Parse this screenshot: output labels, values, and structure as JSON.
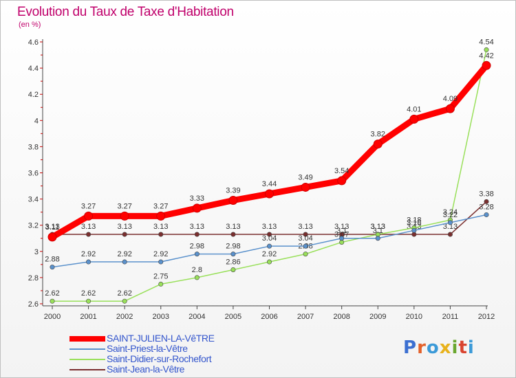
{
  "title": "Evolution du Taux de Taxe d'Habitation",
  "subtitle": "(en %)",
  "logo": {
    "letters": [
      "P",
      "r",
      "o",
      "x",
      "i",
      "t",
      "i"
    ],
    "colors": [
      "#3b6fd1",
      "#e3612a",
      "#3b9ad8",
      "#e8b21c",
      "#6aa72f",
      "#d9432f",
      "#3b9ad8"
    ]
  },
  "chart_data": {
    "type": "line",
    "x": [
      "2000",
      "2001",
      "2002",
      "2003",
      "2004",
      "2005",
      "2006",
      "2007",
      "2008",
      "2009",
      "2010",
      "2011",
      "2012"
    ],
    "y_ticks": [
      "2.6",
      "2.8",
      "3",
      "3.2",
      "3.4",
      "3.6",
      "3.8",
      "4",
      "4.2",
      "4.4",
      "4.6"
    ],
    "y_tick_values": [
      2.6,
      2.8,
      3.0,
      3.2,
      3.4,
      3.6,
      3.8,
      4.0,
      4.2,
      4.4,
      4.6
    ],
    "ylim": [
      2.6,
      4.6
    ],
    "grid": false,
    "series": [
      {
        "name": "Saint-Jean-la-Vêtre",
        "color": "#7a2e2e",
        "values": [
          3.13,
          3.13,
          3.13,
          3.13,
          3.13,
          3.13,
          3.13,
          3.13,
          3.13,
          3.13,
          3.13,
          3.13,
          3.38
        ],
        "labels": [
          "3.13",
          "3.13",
          "3.13",
          "3.13",
          "3.13",
          "3.13",
          "3.13",
          "3.13",
          "3.13",
          "3.13",
          "3.13",
          "3.13",
          "3.38"
        ]
      },
      {
        "name": "Saint-Didier-sur-Rochefort",
        "color": "#99e05a",
        "values": [
          2.62,
          2.62,
          2.62,
          2.75,
          2.8,
          2.86,
          2.92,
          2.98,
          3.07,
          3.13,
          3.18,
          3.24,
          4.54
        ],
        "labels": [
          "2.62",
          "2.62",
          "2.62",
          "2.75",
          "2.8",
          "2.86",
          "2.92",
          "2.98",
          "3.07",
          "3.13",
          "3.18",
          "3.24",
          "4.54"
        ]
      },
      {
        "name": "Saint-Priest-la-Vêtre",
        "color": "#5a91cc",
        "values": [
          2.88,
          2.92,
          2.92,
          2.92,
          2.98,
          2.98,
          3.04,
          3.04,
          3.1,
          3.1,
          3.16,
          3.22,
          3.28
        ],
        "labels": [
          "2.88",
          "2.92",
          "2.92",
          "2.92",
          "2.98",
          "2.98",
          "3.04",
          "3.04",
          "3.1",
          "3.1",
          "3.16",
          "3.22",
          "3.28"
        ]
      },
      {
        "name": "SAINT-JULIEN-LA-VêTRE",
        "color": "#ff0000",
        "values": [
          3.11,
          3.27,
          3.27,
          3.27,
          3.33,
          3.39,
          3.44,
          3.49,
          3.54,
          3.82,
          4.01,
          4.09,
          4.42
        ],
        "labels": [
          "3.11",
          "3.27",
          "3.27",
          "3.27",
          "3.33",
          "3.39",
          "3.44",
          "3.49",
          "3.54",
          "3.82",
          "4.01",
          "4.09",
          "4.42"
        ]
      }
    ],
    "legend": [
      {
        "name": "SAINT-JULIEN-LA-VêTRE",
        "color": "#ff0000",
        "thick": true
      },
      {
        "name": "Saint-Priest-la-Vêtre",
        "color": "#5a91cc",
        "thick": false
      },
      {
        "name": "Saint-Didier-sur-Rochefort",
        "color": "#99e05a",
        "thick": false
      },
      {
        "name": "Saint-Jean-la-Vêtre",
        "color": "#7a2e2e",
        "thick": false
      }
    ],
    "legend_position": "bottom-left"
  }
}
